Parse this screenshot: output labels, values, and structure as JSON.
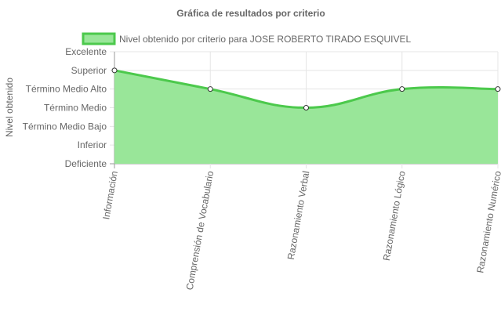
{
  "chart_data": {
    "type": "area",
    "title": "Gráfica de resultados por criterio",
    "ylabel": "Nivel obtenido",
    "xlabel": "",
    "y_levels": [
      "Deficiente",
      "Inferior",
      "Término Medio Bajo",
      "Término Medio",
      "Término Medio Alto",
      "Superior",
      "Excelente"
    ],
    "ylim": [
      0,
      6
    ],
    "categories": [
      "Información",
      "Comprensión de Vocabulario",
      "Razonamiento Verbal",
      "Razonamiento Lógico",
      "Razonamiento Numérico"
    ],
    "series": [
      {
        "name": "Nivel obtenido por criterio para JOSE ROBERTO TIRADO ESQUIVEL",
        "values": [
          5,
          4,
          3,
          4,
          4
        ],
        "fill_color": "#99e699",
        "line_color": "#4cc94c"
      }
    ],
    "grid": true,
    "legend_position": "top"
  }
}
